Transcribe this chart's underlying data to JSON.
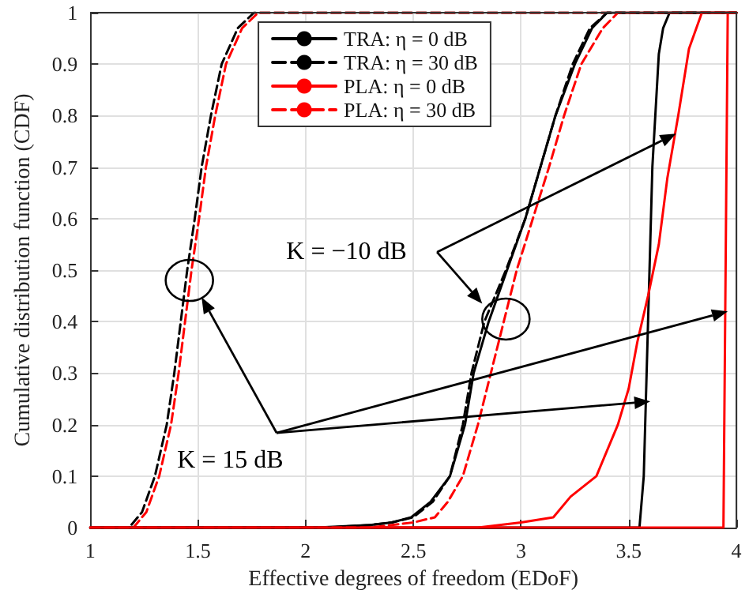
{
  "chart_data": {
    "type": "line",
    "xlabel": "Effective degrees of freedom (EDoF)",
    "ylabel": "Cumulative distribution function (CDF)",
    "xlim": [
      1,
      4
    ],
    "xticks": [
      1,
      1.5,
      2,
      2.5,
      3,
      3.5,
      4
    ],
    "ylim": [
      0,
      1
    ],
    "yticks": [
      0,
      0.1,
      0.2,
      0.3,
      0.4,
      0.5,
      0.6,
      0.7,
      0.8,
      0.9,
      1
    ],
    "grid": true,
    "legend": "top",
    "marker": "none",
    "annotations": [
      "K = −10 dB",
      "K = 15 dB"
    ],
    "series": [
      {
        "name": "TRA: η = 0 dB",
        "color": "#000000",
        "line_style": "solid",
        "x": [
          1,
          3.55,
          3.57,
          3.59,
          3.61,
          3.64,
          3.66,
          3.69,
          4
        ],
        "values": [
          0,
          0,
          0.1,
          0.4,
          0.7,
          0.92,
          0.97,
          1,
          1
        ]
      },
      {
        "name": "TRA: η = 30 dB",
        "color": "#000000",
        "line_style": "dashed",
        "x": [
          1,
          1.18,
          1.24,
          1.3,
          1.355,
          1.39,
          1.42,
          1.45,
          1.485,
          1.517,
          1.56,
          1.61,
          1.685,
          1.76,
          4
        ],
        "values": [
          0,
          0,
          0.03,
          0.1,
          0.2,
          0.3,
          0.4,
          0.5,
          0.6,
          0.7,
          0.8,
          0.9,
          0.97,
          1,
          1
        ]
      },
      {
        "name": "PLA: η = 0 dB",
        "color": "#ff0000",
        "line_style": "solid",
        "x": [
          1,
          3.94,
          3.95,
          3.96,
          4
        ],
        "values": [
          0,
          0,
          0.5,
          1,
          1
        ]
      },
      {
        "name": "PLA: η = 30 dB",
        "color": "#ff0000",
        "line_style": "dashed",
        "x": [
          1,
          1.2,
          1.26,
          1.32,
          1.375,
          1.41,
          1.44,
          1.47,
          1.505,
          1.537,
          1.58,
          1.63,
          1.705,
          1.78,
          4
        ],
        "values": [
          0,
          0,
          0.03,
          0.1,
          0.2,
          0.3,
          0.4,
          0.5,
          0.6,
          0.7,
          0.8,
          0.9,
          0.97,
          1,
          1
        ]
      },
      {
        "color": "#000000",
        "line_style": "solid",
        "x": [
          1,
          2.05,
          2.3,
          2.4,
          2.49,
          2.58,
          2.67,
          2.74,
          2.78,
          2.85,
          2.935,
          3.02,
          3.09,
          3.16,
          3.25,
          3.33,
          3.4,
          4
        ],
        "values": [
          0,
          0,
          0.005,
          0.01,
          0.02,
          0.05,
          0.1,
          0.2,
          0.3,
          0.4,
          0.5,
          0.6,
          0.7,
          0.8,
          0.9,
          0.97,
          1,
          1
        ]
      },
      {
        "color": "#000000",
        "line_style": "dashed",
        "x": [
          1,
          2.1,
          2.3,
          2.4,
          2.5,
          2.59,
          2.67,
          2.73,
          2.77,
          2.83,
          2.93,
          3.02,
          3.09,
          3.16,
          3.24,
          3.32,
          3.4,
          4
        ],
        "values": [
          0,
          0,
          0.005,
          0.01,
          0.02,
          0.05,
          0.1,
          0.2,
          0.3,
          0.4,
          0.5,
          0.6,
          0.7,
          0.8,
          0.9,
          0.97,
          1,
          1
        ]
      },
      {
        "color": "#ff0000",
        "line_style": "dashed",
        "x": [
          1,
          2.3,
          2.4,
          2.5,
          2.6,
          2.66,
          2.73,
          2.8,
          2.86,
          2.92,
          2.98,
          3.055,
          3.13,
          3.2,
          3.28,
          3.38,
          3.45,
          4
        ],
        "values": [
          0,
          0,
          0.005,
          0.01,
          0.02,
          0.05,
          0.1,
          0.2,
          0.3,
          0.4,
          0.5,
          0.6,
          0.7,
          0.8,
          0.9,
          0.97,
          1,
          1
        ]
      },
      {
        "color": "#ff0000",
        "line_style": "solid",
        "x": [
          1,
          2.8,
          3,
          3.15,
          3.23,
          3.35,
          3.45,
          3.5,
          3.54,
          3.59,
          3.64,
          3.68,
          3.73,
          3.78,
          3.84,
          4
        ],
        "values": [
          0,
          0,
          0.01,
          0.02,
          0.06,
          0.1,
          0.2,
          0.27,
          0.36,
          0.45,
          0.55,
          0.68,
          0.8,
          0.93,
          1,
          1
        ]
      }
    ]
  }
}
